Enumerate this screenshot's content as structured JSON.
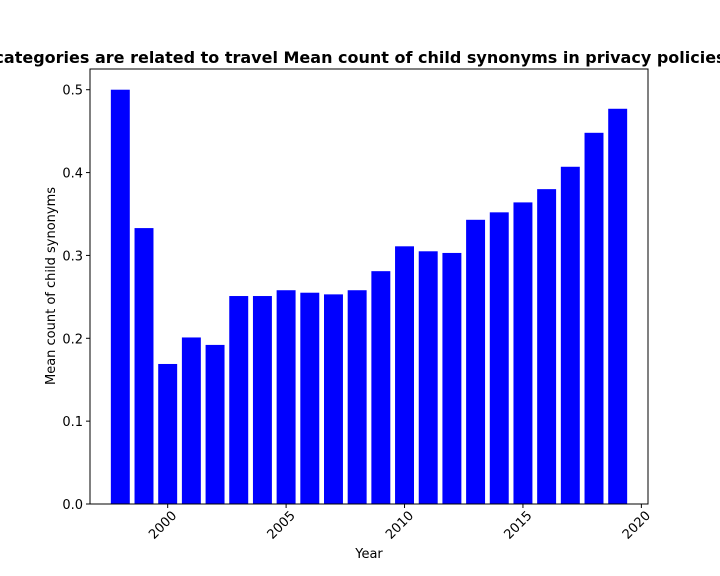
{
  "chart_data": {
    "type": "bar",
    "title": "categories are related to travel Mean count of child synonyms in privacy policies",
    "xlabel": "Year",
    "ylabel": "Mean count of child synonyms",
    "x": [
      1998,
      1999,
      2000,
      2001,
      2002,
      2003,
      2004,
      2005,
      2006,
      2007,
      2008,
      2009,
      2010,
      2011,
      2012,
      2013,
      2014,
      2015,
      2016,
      2017,
      2018,
      2019
    ],
    "values": [
      0.5,
      0.333,
      0.169,
      0.201,
      0.192,
      0.251,
      0.251,
      0.258,
      0.255,
      0.253,
      0.258,
      0.281,
      0.311,
      0.305,
      0.303,
      0.343,
      0.352,
      0.364,
      0.38,
      0.407,
      0.448,
      0.477
    ],
    "xlim": [
      1996.72,
      2020.28
    ],
    "ylim": [
      0,
      0.525
    ],
    "xticks": [
      2000,
      2005,
      2010,
      2015,
      2020
    ],
    "xtick_labels": [
      "2000",
      "2005",
      "2010",
      "2015",
      "2020"
    ],
    "yticks": [
      0.0,
      0.1,
      0.2,
      0.3,
      0.4,
      0.5
    ],
    "ytick_labels": [
      "0.0",
      "0.1",
      "0.2",
      "0.3",
      "0.4",
      "0.5"
    ],
    "bar_color": "#0000ff",
    "grid": false,
    "legend": "none"
  }
}
